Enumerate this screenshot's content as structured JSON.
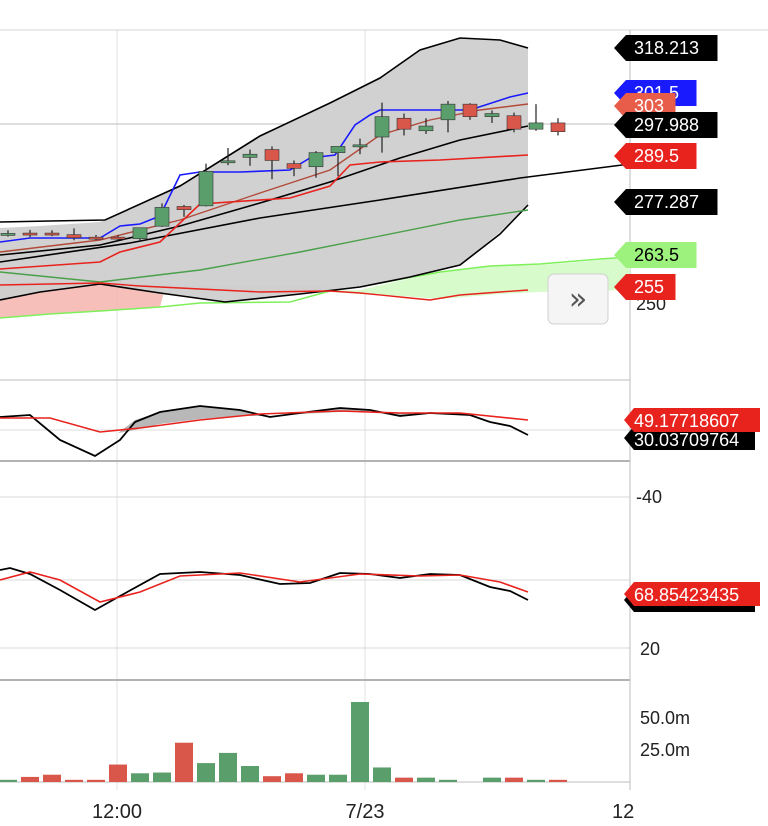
{
  "chart_data": [
    {
      "type": "candlestick",
      "panel": "price",
      "title": "",
      "candles": [
        {
          "o": 268.2,
          "h": 269.2,
          "l": 267.2,
          "c": 268.2
        },
        {
          "o": 268.3,
          "h": 269.3,
          "l": 267.0,
          "c": 268.1
        },
        {
          "o": 268.3,
          "h": 269.2,
          "l": 267.3,
          "c": 267.8
        },
        {
          "o": 267.8,
          "h": 269.8,
          "l": 266.0,
          "c": 266.8
        },
        {
          "o": 267.0,
          "h": 267.7,
          "l": 266.0,
          "c": 266.9
        },
        {
          "o": 267.0,
          "h": 267.6,
          "l": 266.0,
          "c": 266.9
        },
        {
          "o": 266.5,
          "h": 270.0,
          "l": 266.0,
          "c": 270.0
        },
        {
          "o": 270.5,
          "h": 277.8,
          "l": 270.3,
          "c": 276.5
        },
        {
          "o": 276.8,
          "h": 277.3,
          "l": 273.5,
          "c": 275.8
        },
        {
          "o": 277.0,
          "h": 290.5,
          "l": 276.8,
          "c": 288.0
        },
        {
          "o": 291.0,
          "h": 295.5,
          "l": 290.0,
          "c": 291.4
        },
        {
          "o": 292.5,
          "h": 295.0,
          "l": 289.8,
          "c": 293.5
        },
        {
          "o": 295.0,
          "h": 296.0,
          "l": 285.5,
          "c": 291.5
        },
        {
          "o": 290.5,
          "h": 291.5,
          "l": 286.5,
          "c": 289.0
        },
        {
          "o": 289.5,
          "h": 294.5,
          "l": 286.0,
          "c": 294.0
        },
        {
          "o": 294.0,
          "h": 295.5,
          "l": 286.5,
          "c": 296.0
        },
        {
          "o": 296.2,
          "h": 298.5,
          "l": 293.5,
          "c": 296.5
        },
        {
          "o": 299.0,
          "h": 310.0,
          "l": 294.0,
          "c": 305.5
        },
        {
          "o": 305.0,
          "h": 306.5,
          "l": 299.5,
          "c": 301.5
        },
        {
          "o": 301.0,
          "h": 305.0,
          "l": 300.0,
          "c": 302.5
        },
        {
          "o": 304.5,
          "h": 310.5,
          "l": 300.5,
          "c": 309.5
        },
        {
          "o": 309.5,
          "h": 309.8,
          "l": 304.5,
          "c": 305.5
        },
        {
          "o": 305.5,
          "h": 307.5,
          "l": 303.5,
          "c": 306.5
        },
        {
          "o": 305.8,
          "h": 306.8,
          "l": 300.5,
          "c": 301.5
        },
        {
          "o": 301.5,
          "h": 309.5,
          "l": 301.0,
          "c": 303.5
        },
        {
          "o": 303.5,
          "h": 305.0,
          "l": 299.5,
          "c": 300.7
        }
      ],
      "ylim": [
        245,
        330
      ],
      "price_labels": [
        {
          "text": "318.213",
          "color": "#000000"
        },
        {
          "text": "301.5",
          "color": "#1a1aff"
        },
        {
          "text": "303",
          "color": "#e85c4a"
        },
        {
          "text": "297.988",
          "color": "#000000"
        },
        {
          "text": "289.5",
          "color": "#e8231e"
        },
        {
          "text": "277.287",
          "color": "#000000"
        },
        {
          "text": "263.5",
          "color": "#9cf27c"
        },
        {
          "text": "255",
          "color": "#e8231e"
        }
      ],
      "axis_ticks": [
        "250"
      ]
    },
    {
      "type": "line",
      "panel": "oscillator-1",
      "series_values_last": [
        "49.17718607",
        "30.03709764"
      ],
      "colors": [
        "#e8231e",
        "#000000"
      ]
    },
    {
      "type": "line",
      "panel": "oscillator-2",
      "axis_ticks": [
        "-40",
        "20"
      ],
      "series_values_last": [
        "68.85423435"
      ],
      "colors": [
        "#e8231e",
        "#000000"
      ]
    },
    {
      "type": "bar",
      "panel": "volume",
      "values": [
        1.5,
        3.5,
        5,
        1.5,
        1.5,
        12,
        6,
        6.5,
        27,
        13,
        20,
        11,
        4,
        6,
        5,
        5,
        55,
        10,
        3,
        3,
        1.5,
        0,
        3,
        3,
        1.5,
        1.5
      ],
      "axis_ticks": [
        "50.0m",
        "25.0m"
      ],
      "unit": "m"
    }
  ],
  "time_axis": [
    "12:00",
    "7/23",
    "12"
  ],
  "colors": {
    "up": "#5a9e6b",
    "down": "#d9574a",
    "band_fill": "#cfcfcf",
    "cloud_red": "#f5b8b3",
    "cloud_green": "#d7fbcb"
  },
  "controls": {
    "scroll_right_label": "»"
  }
}
